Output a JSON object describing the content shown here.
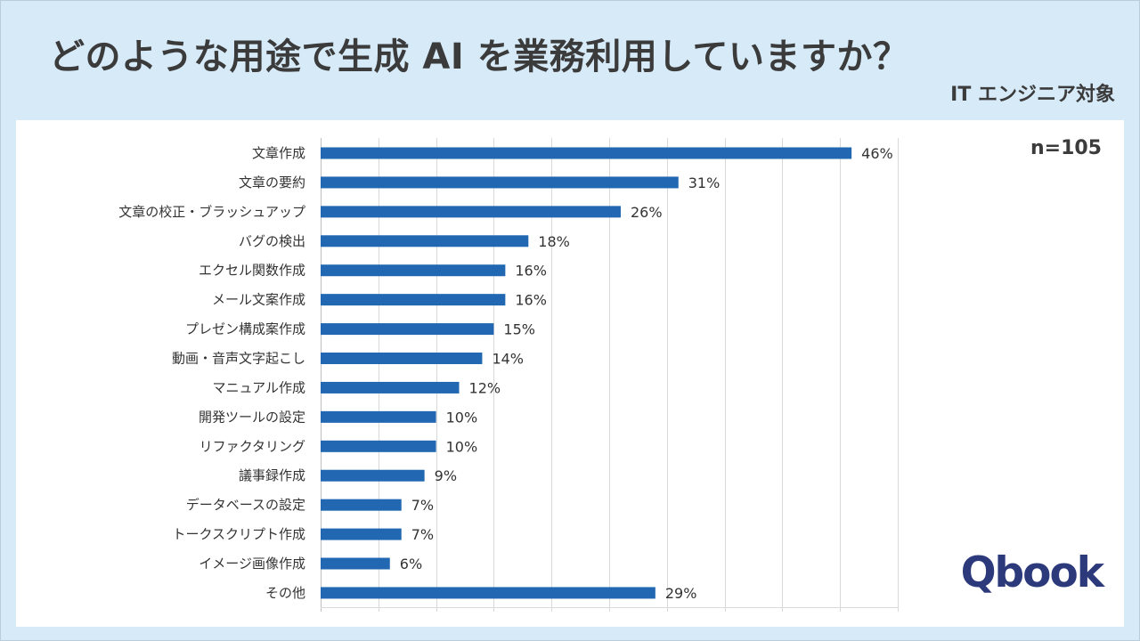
{
  "chart_data": {
    "type": "bar",
    "orientation": "horizontal",
    "title": "どのような用途で生成 AI を業務利用していますか？",
    "subtitle": "IT エンジニア対象",
    "sample_size": "n=105",
    "categories": [
      "文章作成",
      "文章の要約",
      "文章の校正・ブラッシュアップ",
      "バグの検出",
      "エクセル関数作成",
      "メール文案作成",
      "プレゼン構成案作成",
      "動画・音声文字起こし",
      "マニュアル作成",
      "開発ツールの設定",
      "リファクタリング",
      "議事録作成",
      "データベースの設定",
      "トークスクリプト作成",
      "イメージ画像作成",
      "その他"
    ],
    "values": [
      46,
      31,
      26,
      18,
      16,
      16,
      15,
      14,
      12,
      10,
      10,
      9,
      7,
      7,
      6,
      29
    ],
    "value_unit": "%",
    "xlim": [
      0,
      50
    ],
    "grid": true,
    "gridline_step": 5
  },
  "brand": {
    "logo_text": "Qbook"
  },
  "colors": {
    "background": "#d6eaf8",
    "panel": "#ffffff",
    "bar": "#2167b1",
    "text": "#3b3b3b",
    "logo": "#2c3a7c"
  }
}
